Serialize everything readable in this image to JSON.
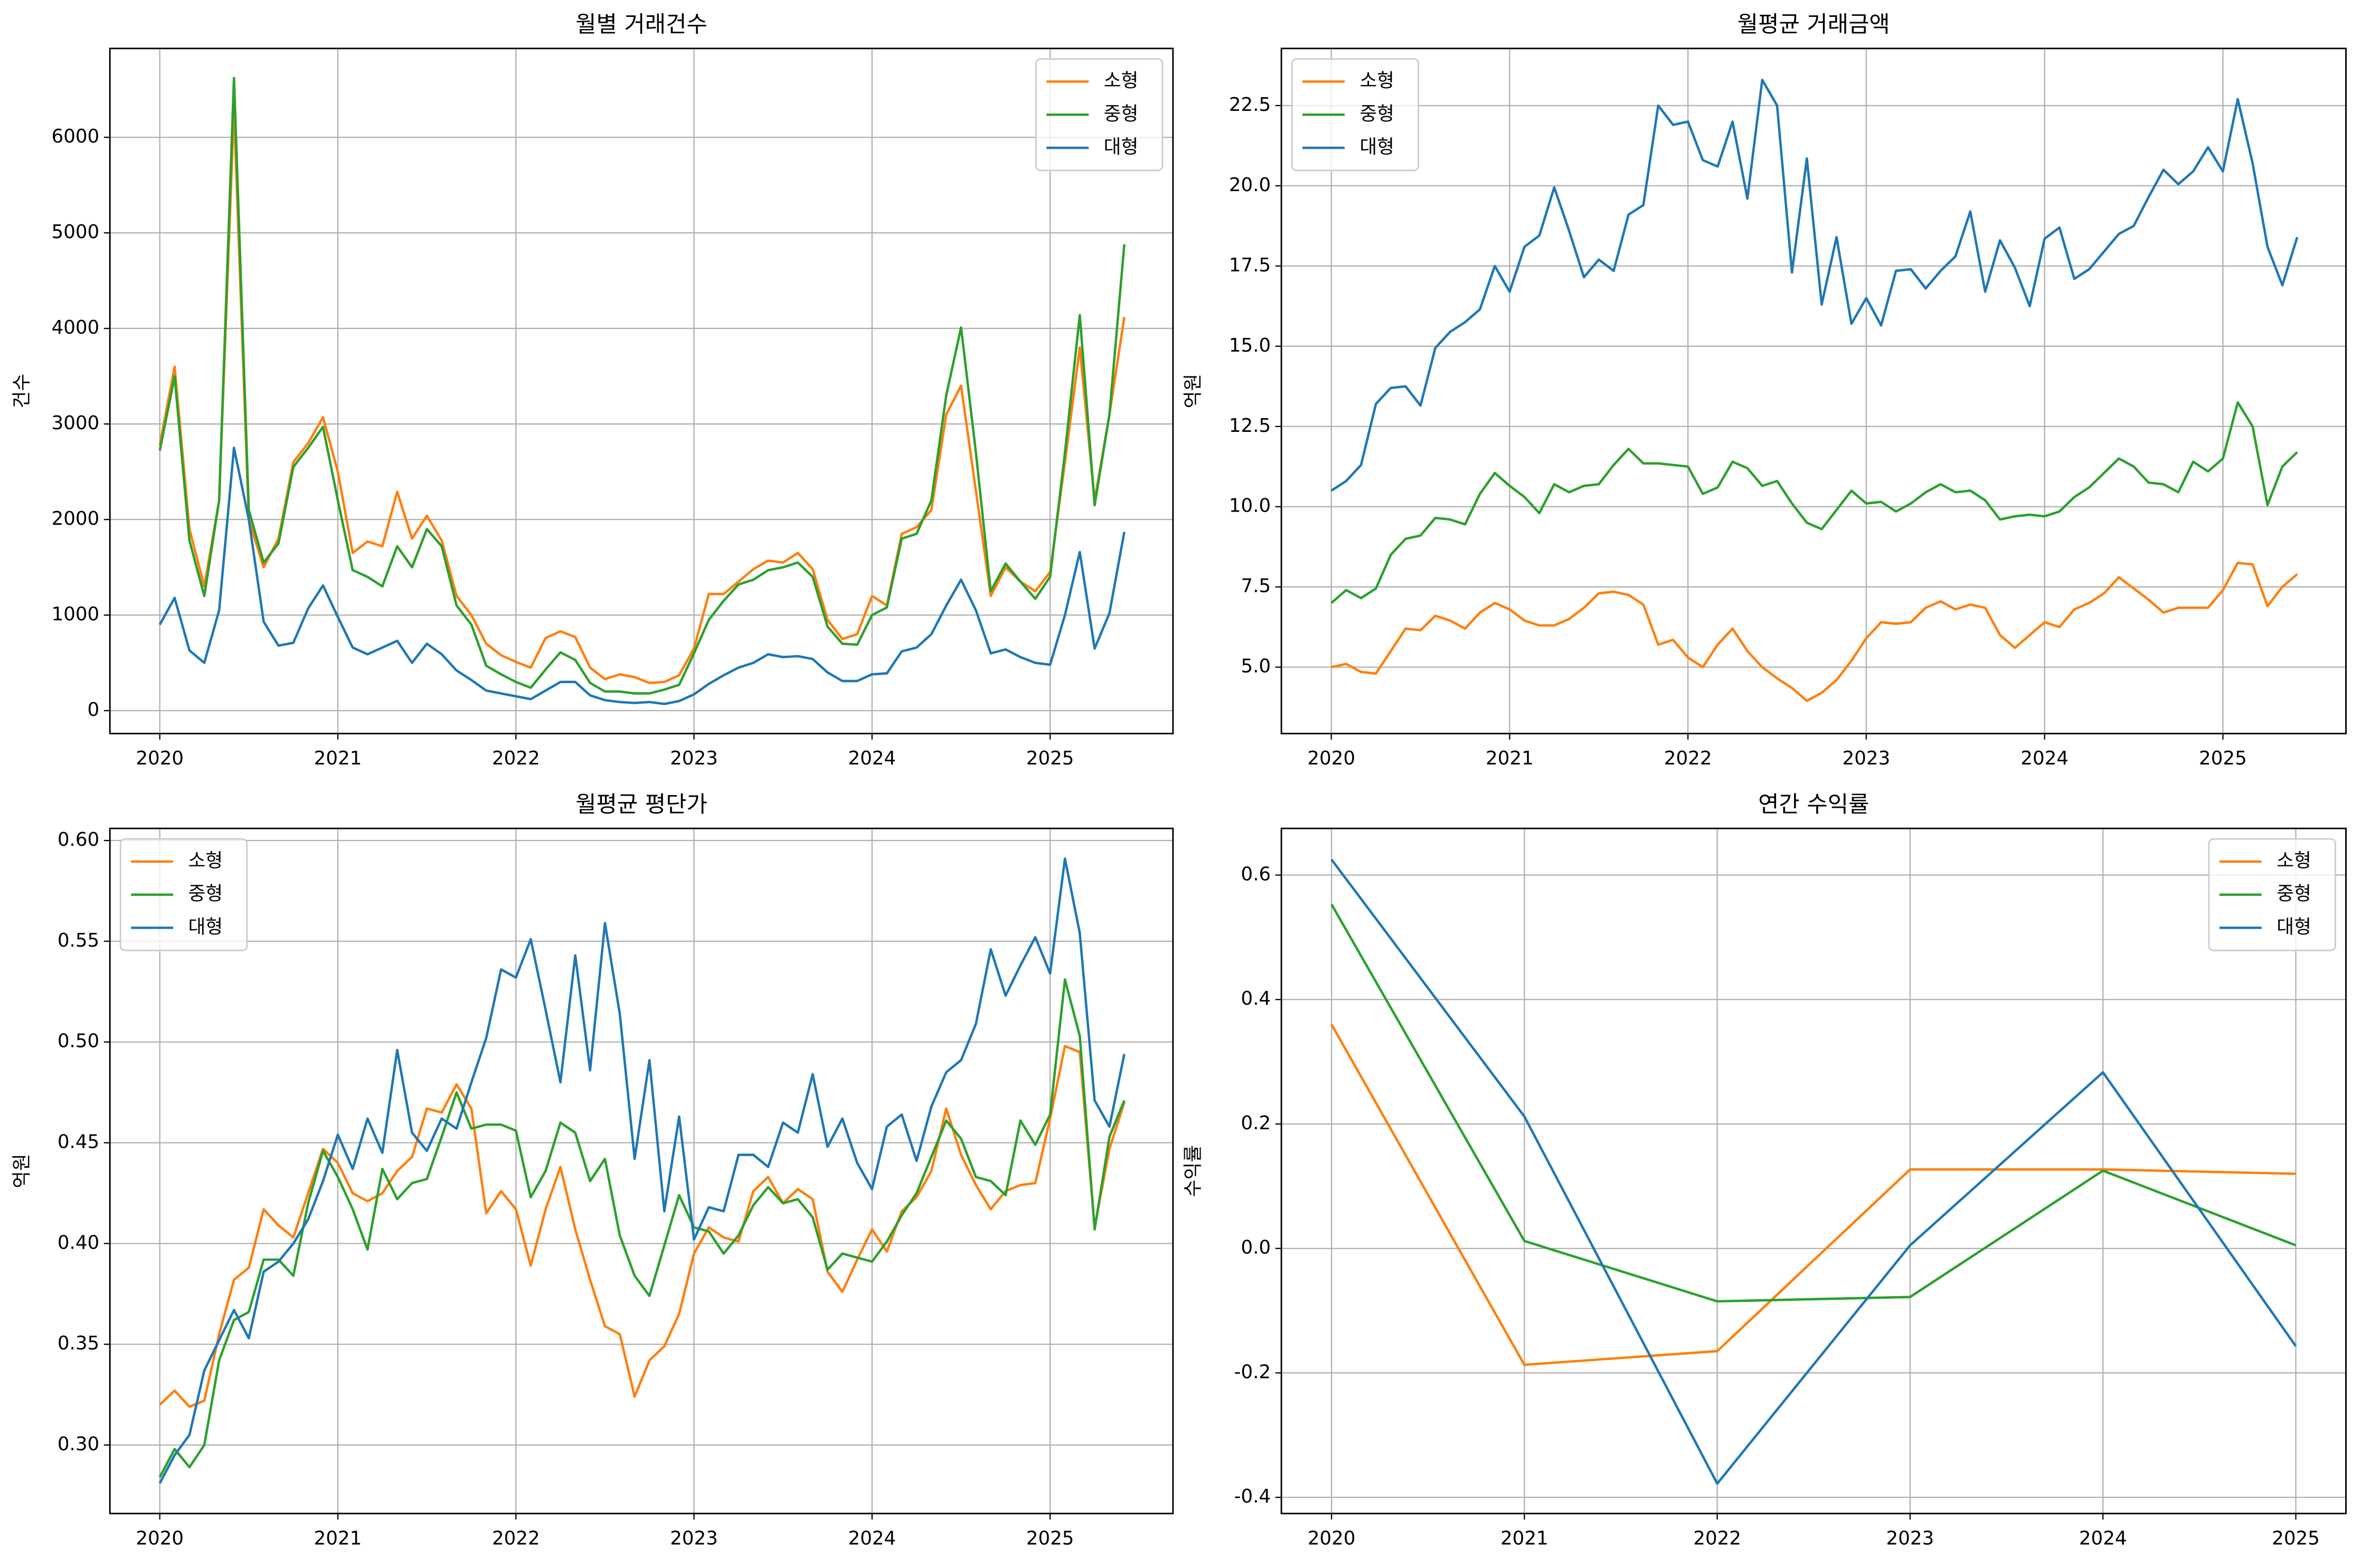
{
  "chart_data": [
    {
      "type": "line",
      "title": "월별 거래건수",
      "ylabel": "건수",
      "grid": true,
      "legend": "upper right",
      "x": [
        "2020-01",
        "2020-02",
        "2020-03",
        "2020-04",
        "2020-05",
        "2020-06",
        "2020-07",
        "2020-08",
        "2020-09",
        "2020-10",
        "2020-11",
        "2020-12",
        "2021-01",
        "2021-02",
        "2021-03",
        "2021-04",
        "2021-05",
        "2021-06",
        "2021-07",
        "2021-08",
        "2021-09",
        "2021-10",
        "2021-11",
        "2021-12",
        "2022-01",
        "2022-02",
        "2022-03",
        "2022-04",
        "2022-05",
        "2022-06",
        "2022-07",
        "2022-08",
        "2022-09",
        "2022-10",
        "2022-11",
        "2022-12",
        "2023-01",
        "2023-02",
        "2023-03",
        "2023-04",
        "2023-05",
        "2023-06",
        "2023-07",
        "2023-08",
        "2023-09",
        "2023-10",
        "2023-11",
        "2023-12",
        "2024-01",
        "2024-02",
        "2024-03",
        "2024-04",
        "2024-05",
        "2024-06",
        "2024-07",
        "2024-08",
        "2024-09",
        "2024-10",
        "2024-11",
        "2024-12",
        "2025-01",
        "2025-02",
        "2025-03",
        "2025-04",
        "2025-05",
        "2025-06"
      ],
      "xlim": [
        2019.72,
        2025.69
      ],
      "xticks": [
        2020,
        2021,
        2022,
        2023,
        2024,
        2025
      ],
      "ylim": [
        -240,
        6930
      ],
      "yticks": [
        0,
        1000,
        2000,
        3000,
        4000,
        5000,
        6000
      ],
      "series": [
        {
          "name": "소형",
          "color": "#ff7f0e",
          "values": [
            2780,
            3600,
            1900,
            1300,
            2200,
            6300,
            2000,
            1500,
            1800,
            2600,
            2800,
            3070,
            2500,
            1650,
            1770,
            1720,
            2290,
            1800,
            2040,
            1780,
            1200,
            1000,
            700,
            580,
            510,
            450,
            760,
            830,
            770,
            450,
            330,
            380,
            350,
            290,
            300,
            370,
            650,
            1220,
            1220,
            1350,
            1480,
            1570,
            1550,
            1650,
            1480,
            950,
            750,
            800,
            1200,
            1100,
            1850,
            1920,
            2100,
            3100,
            3400,
            2300,
            1200,
            1500,
            1350,
            1250,
            1450,
            2600,
            3800,
            2200,
            3100,
            4120
          ]
        },
        {
          "name": "중형",
          "color": "#2ca02c",
          "values": [
            2720,
            3500,
            1780,
            1200,
            2200,
            6620,
            2100,
            1550,
            1750,
            2550,
            2750,
            2970,
            2200,
            1470,
            1400,
            1300,
            1720,
            1500,
            1900,
            1720,
            1100,
            900,
            470,
            380,
            300,
            240,
            430,
            610,
            530,
            290,
            200,
            200,
            180,
            180,
            220,
            270,
            600,
            950,
            1150,
            1320,
            1370,
            1470,
            1500,
            1550,
            1400,
            880,
            700,
            690,
            1000,
            1080,
            1800,
            1850,
            2200,
            3300,
            4010,
            2700,
            1250,
            1540,
            1350,
            1170,
            1400,
            2700,
            4140,
            2150,
            3100,
            4880
          ]
        },
        {
          "name": "대형",
          "color": "#1f77b4",
          "values": [
            900,
            1180,
            630,
            500,
            1050,
            2750,
            2000,
            930,
            680,
            710,
            1070,
            1310,
            980,
            660,
            590,
            660,
            730,
            500,
            700,
            590,
            420,
            320,
            210,
            180,
            150,
            120,
            210,
            300,
            300,
            160,
            110,
            90,
            80,
            90,
            70,
            100,
            170,
            280,
            370,
            450,
            500,
            590,
            560,
            570,
            540,
            400,
            310,
            310,
            380,
            390,
            620,
            660,
            800,
            1100,
            1370,
            1050,
            600,
            640,
            560,
            500,
            480,
            1000,
            1660,
            650,
            1020,
            1870
          ]
        }
      ]
    },
    {
      "type": "line",
      "title": "월평균 거래금액",
      "ylabel": "억원",
      "grid": true,
      "legend": "upper left",
      "x": [
        "2020-01",
        "2020-02",
        "2020-03",
        "2020-04",
        "2020-05",
        "2020-06",
        "2020-07",
        "2020-08",
        "2020-09",
        "2020-10",
        "2020-11",
        "2020-12",
        "2021-01",
        "2021-02",
        "2021-03",
        "2021-04",
        "2021-05",
        "2021-06",
        "2021-07",
        "2021-08",
        "2021-09",
        "2021-10",
        "2021-11",
        "2021-12",
        "2022-01",
        "2022-02",
        "2022-03",
        "2022-04",
        "2022-05",
        "2022-06",
        "2022-07",
        "2022-08",
        "2022-09",
        "2022-10",
        "2022-11",
        "2022-12",
        "2023-01",
        "2023-02",
        "2023-03",
        "2023-04",
        "2023-05",
        "2023-06",
        "2023-07",
        "2023-08",
        "2023-09",
        "2023-10",
        "2023-11",
        "2023-12",
        "2024-01",
        "2024-02",
        "2024-03",
        "2024-04",
        "2024-05",
        "2024-06",
        "2024-07",
        "2024-08",
        "2024-09",
        "2024-10",
        "2024-11",
        "2024-12",
        "2025-01",
        "2025-02",
        "2025-03",
        "2025-04",
        "2025-05",
        "2025-06"
      ],
      "xlim": [
        2019.72,
        2025.69
      ],
      "xticks": [
        2020,
        2021,
        2022,
        2023,
        2024,
        2025
      ],
      "ylim": [
        2.93,
        24.28
      ],
      "yticks": [
        {
          "value": 5,
          "label": "5.0"
        },
        7.5,
        {
          "value": 10,
          "label": "10.0"
        },
        12.5,
        {
          "value": 15,
          "label": "15.0"
        },
        17.5,
        {
          "value": 20,
          "label": "20.0"
        },
        22.5
      ],
      "series": [
        {
          "name": "소형",
          "color": "#ff7f0e",
          "values": [
            5.0,
            5.1,
            4.85,
            4.8,
            5.5,
            6.2,
            6.15,
            6.6,
            6.45,
            6.2,
            6.7,
            7.0,
            6.8,
            6.45,
            6.3,
            6.3,
            6.5,
            6.85,
            7.3,
            7.35,
            7.25,
            6.95,
            5.7,
            5.85,
            5.3,
            5.0,
            5.7,
            6.2,
            5.5,
            5.0,
            4.65,
            4.35,
            3.95,
            4.2,
            4.6,
            5.2,
            5.9,
            6.4,
            6.35,
            6.4,
            6.85,
            7.05,
            6.8,
            6.95,
            6.85,
            6.0,
            5.6,
            6.0,
            6.4,
            6.25,
            6.8,
            7.0,
            7.3,
            7.8,
            7.45,
            7.1,
            6.7,
            6.85,
            6.85,
            6.85,
            7.4,
            8.25,
            8.2,
            6.9,
            7.5,
            7.9
          ]
        },
        {
          "name": "중형",
          "color": "#2ca02c",
          "values": [
            7.0,
            7.4,
            7.15,
            7.45,
            8.5,
            9.0,
            9.1,
            9.65,
            9.6,
            9.45,
            10.4,
            11.05,
            10.65,
            10.3,
            9.8,
            10.7,
            10.45,
            10.65,
            10.7,
            11.3,
            11.8,
            11.35,
            11.35,
            11.3,
            11.25,
            10.4,
            10.6,
            11.4,
            11.2,
            10.65,
            10.8,
            10.1,
            9.5,
            9.3,
            9.9,
            10.5,
            10.1,
            10.15,
            9.85,
            10.1,
            10.45,
            10.7,
            10.45,
            10.5,
            10.2,
            9.6,
            9.7,
            9.75,
            9.7,
            9.85,
            10.3,
            10.6,
            11.05,
            11.5,
            11.25,
            10.75,
            10.7,
            10.45,
            11.4,
            11.1,
            11.5,
            13.25,
            12.5,
            10.05,
            11.25,
            11.7
          ]
        },
        {
          "name": "대형",
          "color": "#1f77b4",
          "values": [
            10.5,
            10.8,
            11.3,
            13.2,
            13.7,
            13.75,
            13.15,
            14.95,
            15.45,
            15.75,
            16.15,
            17.5,
            16.7,
            18.1,
            18.45,
            19.95,
            18.6,
            17.15,
            17.7,
            17.35,
            19.1,
            19.4,
            22.5,
            21.9,
            22.0,
            20.8,
            20.6,
            22.0,
            19.6,
            23.3,
            22.5,
            17.3,
            20.85,
            16.3,
            18.4,
            15.7,
            16.5,
            15.65,
            17.35,
            17.4,
            16.8,
            17.35,
            17.8,
            19.2,
            16.7,
            18.3,
            17.45,
            16.25,
            18.35,
            18.7,
            17.1,
            17.4,
            17.95,
            18.5,
            18.75,
            19.65,
            20.5,
            20.05,
            20.45,
            21.2,
            20.45,
            22.7,
            20.7,
            18.1,
            16.9,
            18.4
          ]
        }
      ]
    },
    {
      "type": "line",
      "title": "월평균 평단가",
      "ylabel": "억원",
      "grid": true,
      "legend": "upper left",
      "x": [
        "2020-01",
        "2020-02",
        "2020-03",
        "2020-04",
        "2020-05",
        "2020-06",
        "2020-07",
        "2020-08",
        "2020-09",
        "2020-10",
        "2020-11",
        "2020-12",
        "2021-01",
        "2021-02",
        "2021-03",
        "2021-04",
        "2021-05",
        "2021-06",
        "2021-07",
        "2021-08",
        "2021-09",
        "2021-10",
        "2021-11",
        "2021-12",
        "2022-01",
        "2022-02",
        "2022-03",
        "2022-04",
        "2022-05",
        "2022-06",
        "2022-07",
        "2022-08",
        "2022-09",
        "2022-10",
        "2022-11",
        "2022-12",
        "2023-01",
        "2023-02",
        "2023-03",
        "2023-04",
        "2023-05",
        "2023-06",
        "2023-07",
        "2023-08",
        "2023-09",
        "2023-10",
        "2023-11",
        "2023-12",
        "2024-01",
        "2024-02",
        "2024-03",
        "2024-04",
        "2024-05",
        "2024-06",
        "2024-07",
        "2024-08",
        "2024-09",
        "2024-10",
        "2024-11",
        "2024-12",
        "2025-01",
        "2025-02",
        "2025-03",
        "2025-04",
        "2025-05",
        "2025-06"
      ],
      "xlim": [
        2019.72,
        2025.69
      ],
      "xticks": [
        2020,
        2021,
        2022,
        2023,
        2024,
        2025
      ],
      "ylim": [
        0.266,
        0.606
      ],
      "yticks": [
        {
          "value": 0.3,
          "label": "0.30"
        },
        0.35,
        {
          "value": 0.4,
          "label": "0.40"
        },
        0.45,
        {
          "value": 0.5,
          "label": "0.50"
        },
        0.55,
        {
          "value": 0.6,
          "label": "0.60"
        }
      ],
      "series": [
        {
          "name": "소형",
          "color": "#ff7f0e",
          "values": [
            0.32,
            0.327,
            0.319,
            0.322,
            0.355,
            0.382,
            0.388,
            0.417,
            0.409,
            0.403,
            0.425,
            0.447,
            0.44,
            0.425,
            0.421,
            0.425,
            0.436,
            0.443,
            0.467,
            0.465,
            0.479,
            0.467,
            0.415,
            0.426,
            0.417,
            0.389,
            0.417,
            0.438,
            0.407,
            0.382,
            0.359,
            0.355,
            0.324,
            0.342,
            0.349,
            0.365,
            0.395,
            0.408,
            0.403,
            0.401,
            0.426,
            0.433,
            0.42,
            0.427,
            0.422,
            0.386,
            0.376,
            0.392,
            0.407,
            0.396,
            0.416,
            0.423,
            0.436,
            0.467,
            0.444,
            0.429,
            0.417,
            0.426,
            0.429,
            0.43,
            0.462,
            0.498,
            0.495,
            0.408,
            0.447,
            0.47
          ]
        },
        {
          "name": "중형",
          "color": "#2ca02c",
          "values": [
            0.284,
            0.298,
            0.289,
            0.3,
            0.342,
            0.362,
            0.366,
            0.392,
            0.392,
            0.384,
            0.42,
            0.446,
            0.433,
            0.417,
            0.397,
            0.437,
            0.422,
            0.43,
            0.432,
            0.453,
            0.475,
            0.457,
            0.459,
            0.459,
            0.456,
            0.423,
            0.436,
            0.46,
            0.455,
            0.431,
            0.442,
            0.404,
            0.384,
            0.374,
            0.399,
            0.424,
            0.408,
            0.406,
            0.395,
            0.404,
            0.419,
            0.428,
            0.42,
            0.422,
            0.413,
            0.387,
            0.395,
            0.393,
            0.391,
            0.401,
            0.414,
            0.425,
            0.443,
            0.461,
            0.452,
            0.433,
            0.431,
            0.424,
            0.461,
            0.449,
            0.464,
            0.531,
            0.503,
            0.407,
            0.453,
            0.471
          ]
        },
        {
          "name": "대형",
          "color": "#1f77b4",
          "values": [
            0.281,
            0.295,
            0.305,
            0.337,
            0.352,
            0.367,
            0.353,
            0.386,
            0.391,
            0.4,
            0.412,
            0.431,
            0.454,
            0.437,
            0.462,
            0.445,
            0.496,
            0.455,
            0.446,
            0.462,
            0.457,
            0.48,
            0.502,
            0.536,
            0.532,
            0.551,
            0.516,
            0.48,
            0.543,
            0.486,
            0.559,
            0.514,
            0.442,
            0.491,
            0.416,
            0.463,
            0.402,
            0.418,
            0.416,
            0.444,
            0.444,
            0.438,
            0.46,
            0.455,
            0.484,
            0.448,
            0.462,
            0.44,
            0.427,
            0.458,
            0.464,
            0.441,
            0.468,
            0.485,
            0.491,
            0.509,
            0.546,
            0.523,
            0.538,
            0.552,
            0.534,
            0.591,
            0.554,
            0.471,
            0.458,
            0.494
          ]
        }
      ]
    },
    {
      "type": "line",
      "title": "연간 수익률",
      "ylabel": "수익률",
      "grid": true,
      "legend": "upper right",
      "x": [
        2020,
        2021,
        2022,
        2023,
        2024,
        2025
      ],
      "xlim": [
        2019.74,
        2025.26
      ],
      "xticks": [
        2020,
        2021,
        2022,
        2023,
        2024,
        2025
      ],
      "ylim": [
        -0.426,
        0.675
      ],
      "yticks": [
        -0.4,
        -0.2,
        {
          "value": 0,
          "label": "0.0"
        },
        0.2,
        0.4,
        0.6
      ],
      "series": [
        {
          "name": "소형",
          "color": "#ff7f0e",
          "values": [
            0.36,
            -0.187,
            -0.165,
            0.127,
            0.127,
            0.12
          ]
        },
        {
          "name": "중형",
          "color": "#2ca02c",
          "values": [
            0.553,
            0.012,
            -0.085,
            -0.078,
            0.125,
            0.005
          ]
        },
        {
          "name": "대형",
          "color": "#1f77b4",
          "values": [
            0.625,
            0.212,
            -0.378,
            0.005,
            0.283,
            -0.157
          ]
        }
      ]
    }
  ]
}
